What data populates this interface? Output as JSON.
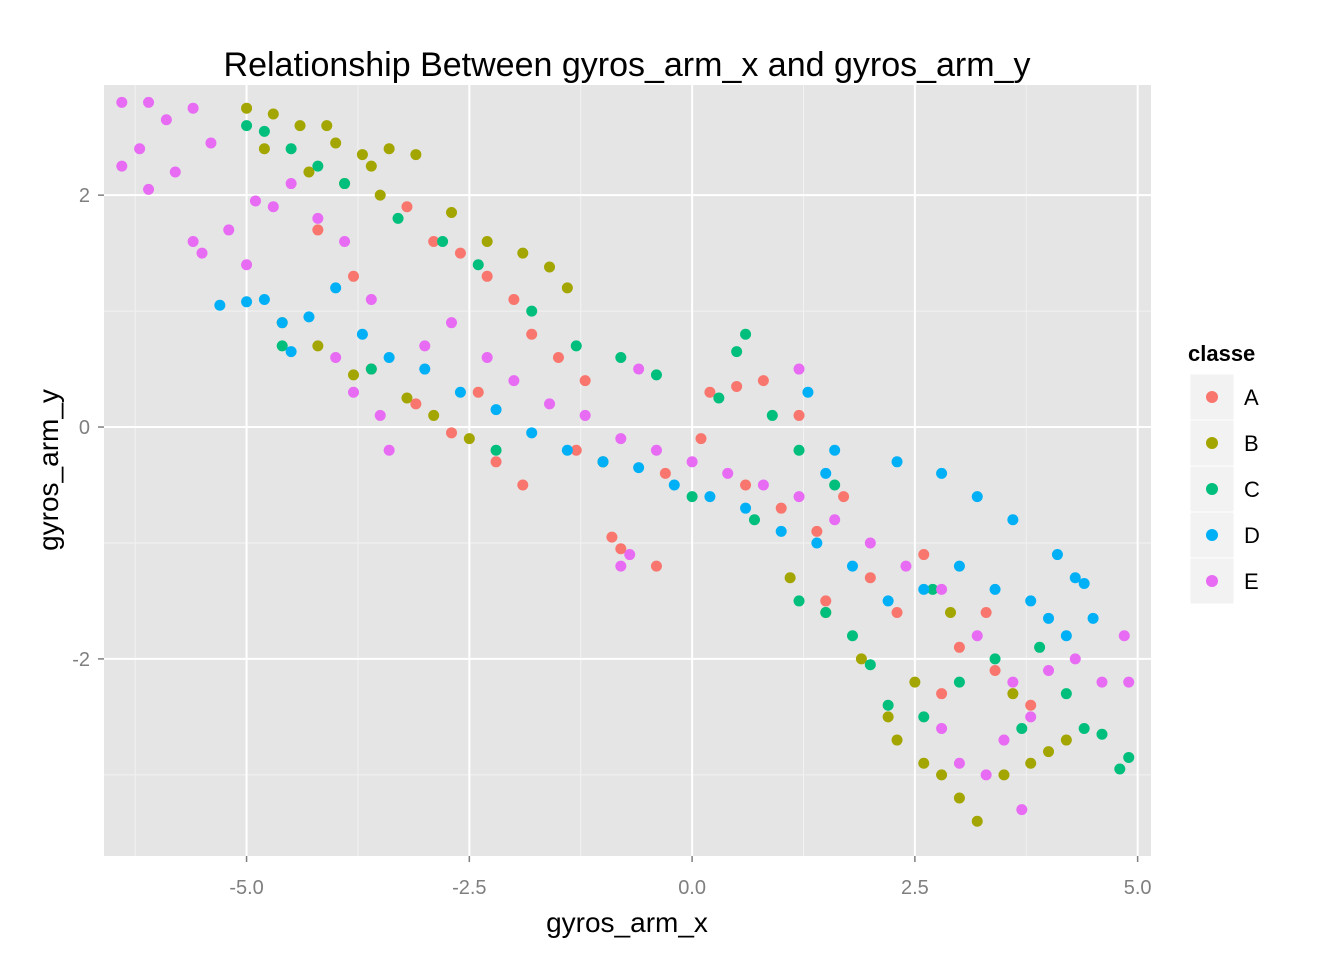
{
  "chart_data": {
    "type": "scatter",
    "title": "Relationship Between gyros_arm_x and gyros_arm_y",
    "xlabel": "gyros_arm_x",
    "ylabel": "gyros_arm_y",
    "xlim": [
      -6.6,
      5.15
    ],
    "ylim": [
      -3.7,
      2.95
    ],
    "x_ticks": [
      -5.0,
      -2.5,
      0.0,
      2.5,
      5.0
    ],
    "x_tick_labels": [
      "-5.0",
      "-2.5",
      "0.0",
      "2.5",
      "5.0"
    ],
    "y_ticks": [
      -2,
      0,
      2
    ],
    "y_tick_labels": [
      "-2",
      "0",
      "2"
    ],
    "grid": true,
    "background": "#e5e5e5",
    "legend": {
      "title": "classe",
      "position": "right",
      "entries": [
        {
          "label": "A",
          "color": "#f8766d"
        },
        {
          "label": "B",
          "color": "#a3a500"
        },
        {
          "label": "C",
          "color": "#00bf7d"
        },
        {
          "label": "D",
          "color": "#00b0f6"
        },
        {
          "label": "E",
          "color": "#e76bf3"
        }
      ]
    },
    "series": [
      {
        "name": "A",
        "color": "#f8766d",
        "points": [
          [
            -3.2,
            1.9
          ],
          [
            -2.9,
            1.6
          ],
          [
            -2.6,
            1.5
          ],
          [
            -2.3,
            1.3
          ],
          [
            -2.0,
            1.1
          ],
          [
            -1.8,
            0.8
          ],
          [
            -1.5,
            0.6
          ],
          [
            -1.2,
            0.4
          ],
          [
            -3.6,
            0.5
          ],
          [
            -3.1,
            0.2
          ],
          [
            -2.7,
            -0.05
          ],
          [
            -2.2,
            -0.3
          ],
          [
            -1.9,
            -0.5
          ],
          [
            -1.3,
            -0.2
          ],
          [
            -0.9,
            -0.95
          ],
          [
            -0.8,
            -1.05
          ],
          [
            -0.4,
            -1.2
          ],
          [
            0.2,
            0.3
          ],
          [
            0.5,
            0.35
          ],
          [
            0.8,
            0.4
          ],
          [
            1.2,
            0.1
          ],
          [
            1.7,
            -0.6
          ],
          [
            2.0,
            -1.3
          ],
          [
            2.3,
            -1.6
          ],
          [
            1.5,
            -1.5
          ],
          [
            2.6,
            -1.1
          ],
          [
            3.0,
            -1.9
          ],
          [
            3.4,
            -2.1
          ],
          [
            3.8,
            -2.4
          ],
          [
            -4.2,
            1.7
          ],
          [
            -3.8,
            1.3
          ],
          [
            -2.4,
            0.3
          ],
          [
            -1.0,
            -0.3
          ],
          [
            -0.3,
            -0.4
          ],
          [
            0.1,
            -0.1
          ],
          [
            0.6,
            -0.5
          ],
          [
            1.0,
            -0.7
          ],
          [
            1.4,
            -0.9
          ],
          [
            2.8,
            -2.3
          ],
          [
            3.3,
            -1.6
          ]
        ]
      },
      {
        "name": "B",
        "color": "#a3a500",
        "points": [
          [
            -5.0,
            2.75
          ],
          [
            -4.7,
            2.7
          ],
          [
            -4.4,
            2.6
          ],
          [
            -4.0,
            2.45
          ],
          [
            -3.7,
            2.35
          ],
          [
            -3.4,
            2.4
          ],
          [
            -3.1,
            2.35
          ],
          [
            -4.8,
            2.4
          ],
          [
            -4.3,
            2.2
          ],
          [
            -3.9,
            2.1
          ],
          [
            -3.5,
            2.0
          ],
          [
            -2.7,
            1.85
          ],
          [
            -2.3,
            1.6
          ],
          [
            -1.9,
            1.5
          ],
          [
            -1.6,
            1.38
          ],
          [
            -1.4,
            1.2
          ],
          [
            -4.6,
            0.9
          ],
          [
            -4.2,
            0.7
          ],
          [
            -3.8,
            0.45
          ],
          [
            -3.2,
            0.25
          ],
          [
            -2.9,
            0.1
          ],
          [
            -2.5,
            -0.1
          ],
          [
            1.1,
            -1.3
          ],
          [
            1.5,
            -1.6
          ],
          [
            1.9,
            -2.0
          ],
          [
            2.2,
            -2.5
          ],
          [
            2.3,
            -2.7
          ],
          [
            2.6,
            -2.9
          ],
          [
            2.8,
            -3.0
          ],
          [
            3.0,
            -3.2
          ],
          [
            3.2,
            -3.4
          ],
          [
            3.5,
            -3.0
          ],
          [
            3.8,
            -2.9
          ],
          [
            4.0,
            -2.8
          ],
          [
            4.2,
            -2.7
          ],
          [
            2.5,
            -2.2
          ],
          [
            2.9,
            -1.6
          ],
          [
            3.6,
            -2.3
          ],
          [
            -4.1,
            2.6
          ],
          [
            -3.6,
            2.25
          ]
        ]
      },
      {
        "name": "C",
        "color": "#00bf7d",
        "points": [
          [
            -5.0,
            2.6
          ],
          [
            -4.8,
            2.55
          ],
          [
            -4.5,
            2.4
          ],
          [
            -4.2,
            2.25
          ],
          [
            -3.9,
            2.1
          ],
          [
            -3.3,
            1.8
          ],
          [
            -2.8,
            1.6
          ],
          [
            -2.4,
            1.4
          ],
          [
            -1.8,
            1.0
          ],
          [
            -1.3,
            0.7
          ],
          [
            -0.8,
            0.6
          ],
          [
            -0.4,
            0.45
          ],
          [
            0.3,
            0.25
          ],
          [
            0.5,
            0.65
          ],
          [
            0.6,
            0.8
          ],
          [
            0.9,
            0.1
          ],
          [
            1.2,
            -0.2
          ],
          [
            1.6,
            -0.5
          ],
          [
            1.2,
            -1.5
          ],
          [
            1.5,
            -1.6
          ],
          [
            1.8,
            -1.8
          ],
          [
            2.0,
            -2.05
          ],
          [
            2.2,
            -2.4
          ],
          [
            2.6,
            -2.5
          ],
          [
            3.0,
            -2.2
          ],
          [
            3.4,
            -2.0
          ],
          [
            3.9,
            -1.9
          ],
          [
            4.2,
            -2.3
          ],
          [
            4.4,
            -2.6
          ],
          [
            4.8,
            -2.95
          ],
          [
            4.9,
            -2.85
          ],
          [
            4.6,
            -2.65
          ],
          [
            -4.6,
            0.7
          ],
          [
            -3.6,
            0.5
          ],
          [
            -2.2,
            -0.2
          ],
          [
            -1.0,
            -0.3
          ],
          [
            0.0,
            -0.6
          ],
          [
            0.7,
            -0.8
          ],
          [
            2.7,
            -1.4
          ],
          [
            3.7,
            -2.6
          ]
        ]
      },
      {
        "name": "D",
        "color": "#00b0f6",
        "points": [
          [
            -5.3,
            1.05
          ],
          [
            -5.0,
            1.08
          ],
          [
            -4.8,
            1.1
          ],
          [
            -4.6,
            0.9
          ],
          [
            -4.5,
            0.65
          ],
          [
            -4.3,
            0.95
          ],
          [
            -4.0,
            1.2
          ],
          [
            -3.7,
            0.8
          ],
          [
            -3.4,
            0.6
          ],
          [
            -3.0,
            0.5
          ],
          [
            -2.6,
            0.3
          ],
          [
            -2.2,
            0.15
          ],
          [
            -1.8,
            -0.05
          ],
          [
            -1.4,
            -0.2
          ],
          [
            -1.0,
            -0.3
          ],
          [
            -0.6,
            -0.35
          ],
          [
            -0.2,
            -0.5
          ],
          [
            0.2,
            -0.6
          ],
          [
            0.6,
            -0.7
          ],
          [
            1.0,
            -0.9
          ],
          [
            1.4,
            -1.0
          ],
          [
            1.8,
            -1.2
          ],
          [
            2.2,
            -1.5
          ],
          [
            2.6,
            -1.4
          ],
          [
            3.0,
            -1.2
          ],
          [
            3.4,
            -1.4
          ],
          [
            3.8,
            -1.5
          ],
          [
            4.0,
            -1.65
          ],
          [
            4.1,
            -1.1
          ],
          [
            4.3,
            -1.3
          ],
          [
            4.5,
            -1.65
          ],
          [
            4.2,
            -1.8
          ],
          [
            3.6,
            -0.8
          ],
          [
            3.2,
            -0.6
          ],
          [
            2.8,
            -0.4
          ],
          [
            2.3,
            -0.3
          ],
          [
            1.6,
            -0.2
          ],
          [
            1.3,
            0.3
          ],
          [
            1.5,
            -0.4
          ],
          [
            4.4,
            -1.35
          ]
        ]
      },
      {
        "name": "E",
        "color": "#e76bf3",
        "points": [
          [
            -6.4,
            2.8
          ],
          [
            -6.1,
            2.8
          ],
          [
            -5.9,
            2.65
          ],
          [
            -5.6,
            2.75
          ],
          [
            -6.4,
            2.25
          ],
          [
            -6.2,
            2.4
          ],
          [
            -6.1,
            2.05
          ],
          [
            -5.8,
            2.2
          ],
          [
            -5.6,
            1.6
          ],
          [
            -5.5,
            1.5
          ],
          [
            -5.2,
            1.7
          ],
          [
            -5.0,
            1.4
          ],
          [
            -4.7,
            1.9
          ],
          [
            -4.5,
            2.1
          ],
          [
            -4.2,
            1.8
          ],
          [
            -3.9,
            1.6
          ],
          [
            -4.0,
            0.6
          ],
          [
            -3.8,
            0.3
          ],
          [
            -3.5,
            0.1
          ],
          [
            -3.4,
            -0.2
          ],
          [
            -3.0,
            0.7
          ],
          [
            -2.7,
            0.9
          ],
          [
            -2.3,
            0.6
          ],
          [
            -2.0,
            0.4
          ],
          [
            -1.6,
            0.2
          ],
          [
            -1.2,
            0.1
          ],
          [
            -0.8,
            -0.1
          ],
          [
            -0.6,
            0.5
          ],
          [
            -0.4,
            -0.2
          ],
          [
            0.0,
            -0.3
          ],
          [
            0.4,
            -0.4
          ],
          [
            0.8,
            -0.5
          ],
          [
            1.2,
            -0.6
          ],
          [
            1.2,
            0.5
          ],
          [
            1.6,
            -0.8
          ],
          [
            2.0,
            -1.0
          ],
          [
            2.4,
            -1.2
          ],
          [
            2.8,
            -1.4
          ],
          [
            3.2,
            -1.8
          ],
          [
            3.6,
            -2.2
          ],
          [
            3.8,
            -2.5
          ],
          [
            4.0,
            -2.1
          ],
          [
            4.3,
            -2.0
          ],
          [
            4.6,
            -2.2
          ],
          [
            4.85,
            -1.8
          ],
          [
            4.9,
            -2.2
          ],
          [
            3.5,
            -2.7
          ],
          [
            3.3,
            -3.0
          ],
          [
            3.7,
            -3.3
          ],
          [
            3.0,
            -2.9
          ],
          [
            2.8,
            -2.6
          ],
          [
            -0.7,
            -1.1
          ],
          [
            -0.8,
            -1.2
          ],
          [
            -5.4,
            2.45
          ],
          [
            -4.9,
            1.95
          ],
          [
            -3.6,
            1.1
          ]
        ]
      }
    ]
  }
}
